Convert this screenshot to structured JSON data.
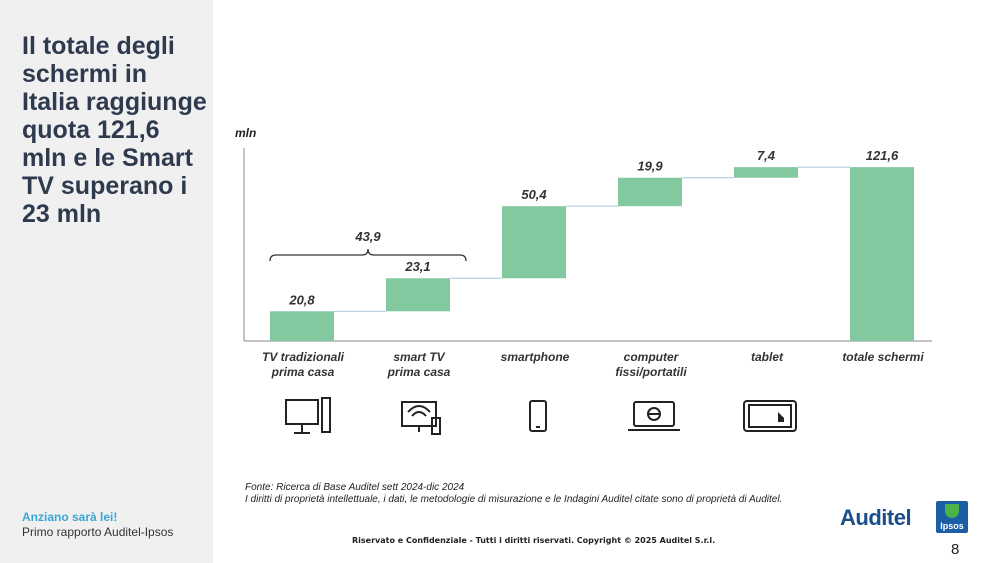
{
  "title": "Il totale degli schermi in Italia raggiunge quota 121,6 mln e le Smart TV superano i  23 mln",
  "sidebar_footer": {
    "line1": "Anziano sarà lei!",
    "line2": "Primo rapporto Auditel-Ipsos"
  },
  "chart_data": {
    "type": "bar",
    "subtype": "waterfall",
    "ylabel": "mln",
    "categories": [
      [
        "TV tradizionali",
        "prima casa"
      ],
      [
        "smart TV",
        "prima casa"
      ],
      [
        "smartphone"
      ],
      [
        "computer",
        "fissi/portatili"
      ],
      [
        "tablet"
      ],
      [
        "totale schermi"
      ]
    ],
    "values": [
      20.8,
      23.1,
      50.4,
      19.9,
      7.4,
      121.6
    ],
    "value_labels": [
      "20,8",
      "23,1",
      "50,4",
      "19,9",
      "7,4",
      "121,6"
    ],
    "total_index": 5,
    "bracket": {
      "label": "43,9",
      "from_index": 0,
      "to_index": 1
    },
    "bar_color": "#82c9a0",
    "ylim": [
      0,
      135
    ],
    "icons": [
      "tv-icon",
      "smart-tv-icon",
      "smartphone-icon",
      "computer-icon",
      "tablet-icon"
    ]
  },
  "source": {
    "line1": "Fonte: Ricerca di Base Auditel sett 2024-dic 2024",
    "line2": "I diritti di proprietà intellettuale, i dati, le metodologie di misurazione e le Indagini Auditel citate sono di proprietà di Auditel."
  },
  "copyright": "Riservato e Confidenziale - Tutti i diritti riservati. Copyright © 2025 Auditel S.r.l.",
  "page_number": "8",
  "logos": {
    "auditel": "Auditel",
    "ipsos": "Ipsos"
  }
}
